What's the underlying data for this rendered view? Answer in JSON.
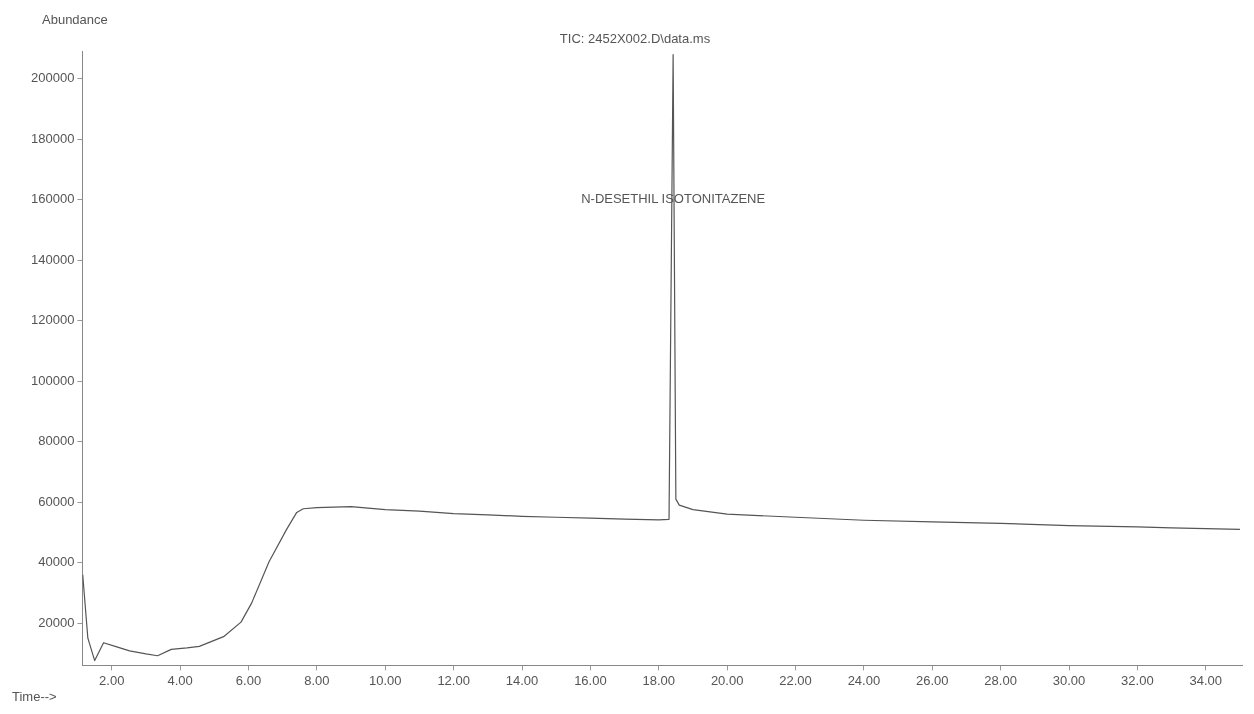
{
  "chart_data": {
    "type": "line",
    "title": "TIC: 2452X002.D\\data.ms",
    "xlabel": "Time-->",
    "ylabel": "Abundance",
    "annotations": [
      {
        "text": "N-DESETHIL ISOTONITAZENE",
        "x": 18.42,
        "y": 160000
      }
    ],
    "xlim": [
      1.14,
      35.06
    ],
    "ylim": [
      6000,
      209000
    ],
    "xticks": [
      {
        "value": 2,
        "label": "2.00"
      },
      {
        "value": 4,
        "label": "4.00"
      },
      {
        "value": 6,
        "label": "6.00"
      },
      {
        "value": 8,
        "label": "8.00"
      },
      {
        "value": 10,
        "label": "10.00"
      },
      {
        "value": 12,
        "label": "12.00"
      },
      {
        "value": 14,
        "label": "14.00"
      },
      {
        "value": 16,
        "label": "16.00"
      },
      {
        "value": 18,
        "label": "18.00"
      },
      {
        "value": 20,
        "label": "20.00"
      },
      {
        "value": 22,
        "label": "22.00"
      },
      {
        "value": 24,
        "label": "24.00"
      },
      {
        "value": 26,
        "label": "26.00"
      },
      {
        "value": 28,
        "label": "28.00"
      },
      {
        "value": 30,
        "label": "30.00"
      },
      {
        "value": 32,
        "label": "32.00"
      },
      {
        "value": 34,
        "label": "34.00"
      }
    ],
    "yticks": [
      20000,
      40000,
      60000,
      80000,
      100000,
      120000,
      140000,
      160000,
      180000,
      200000
    ],
    "grid": false,
    "legend": false,
    "marker": "none",
    "line_style": "solid",
    "series": [
      {
        "color": "#555555",
        "x": [
          1.15,
          1.3,
          1.5,
          1.76,
          2.1,
          2.52,
          3.0,
          3.34,
          3.74,
          4.2,
          4.56,
          5.27,
          5.78,
          6.09,
          6.6,
          7.11,
          7.41,
          7.6,
          8.0,
          9.0,
          10.0,
          11.0,
          12.0,
          13.0,
          14.0,
          15.0,
          16.0,
          17.0,
          18.0,
          18.3,
          18.42,
          18.5,
          18.6,
          19.0,
          20.0,
          22.0,
          24.0,
          26.0,
          28.0,
          30.0,
          32.0,
          33.0,
          35.0
        ],
        "values": [
          36000,
          15000,
          7600,
          13500,
          12300,
          10800,
          9800,
          9200,
          11300,
          11800,
          12300,
          15500,
          20300,
          26600,
          40300,
          50900,
          56600,
          57800,
          58200,
          58500,
          57500,
          57000,
          56200,
          55800,
          55300,
          55000,
          54700,
          54400,
          54100,
          54300,
          208000,
          61000,
          59000,
          57500,
          56000,
          55000,
          54000,
          53500,
          53000,
          52200,
          51800,
          51500,
          51000
        ]
      }
    ]
  }
}
